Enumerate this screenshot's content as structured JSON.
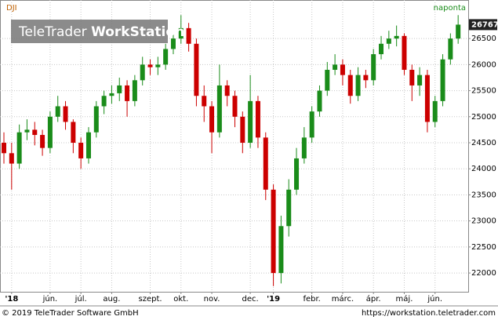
{
  "chart_data": {
    "type": "candlestick",
    "title": "DJI",
    "interval": "naponta",
    "watermark": {
      "brand": "TeleTrader",
      "product": "WorkStation"
    },
    "footer_left": "© 2019 TeleTrader Software GmbH",
    "footer_right": "https://workstation.teletrader.com",
    "up_color": "#1a8c1a",
    "down_color": "#cc0000",
    "grid": true,
    "last_value": 26767,
    "categories": [
      null,
      "'18",
      null,
      null,
      null,
      null,
      "jún.",
      null,
      null,
      null,
      "júl.",
      null,
      null,
      null,
      "aug.",
      null,
      null,
      null,
      null,
      "szept.",
      null,
      null,
      null,
      "okt.",
      null,
      null,
      null,
      "nov.",
      null,
      null,
      null,
      null,
      "dec.",
      null,
      null,
      "'19",
      null,
      null,
      null,
      null,
      "febr.",
      null,
      null,
      null,
      "márc.",
      null,
      null,
      null,
      "ápr.",
      null,
      null,
      null,
      "máj.",
      null,
      null,
      null,
      "jún.",
      null,
      null,
      null
    ],
    "open": [
      24500,
      24300,
      24100,
      24700,
      24750,
      24650,
      24400,
      25000,
      25200,
      24900,
      24500,
      24200,
      24700,
      25200,
      25400,
      25450,
      25600,
      25300,
      25700,
      26000,
      25950,
      26000,
      26300,
      26500,
      26700,
      26400,
      25400,
      25200,
      24700,
      25600,
      25400,
      25000,
      24500,
      25300,
      24600,
      23600,
      22000,
      22900,
      23600,
      24200,
      24600,
      25100,
      25500,
      25900,
      26000,
      25800,
      25400,
      25800,
      25700,
      26200,
      26400,
      26500,
      26550,
      25900,
      25600,
      25800,
      24900,
      25300,
      26100,
      26500
    ],
    "high": [
      24700,
      24500,
      24850,
      24950,
      24900,
      24750,
      25100,
      25400,
      25300,
      24950,
      24600,
      24800,
      25300,
      25500,
      25600,
      25750,
      25700,
      25800,
      26150,
      26100,
      26150,
      26400,
      26650,
      26950,
      26800,
      26500,
      25600,
      25300,
      26000,
      25700,
      25500,
      25100,
      25800,
      25400,
      24700,
      23700,
      23100,
      23800,
      24400,
      24800,
      25200,
      25600,
      26050,
      26200,
      26100,
      25900,
      25950,
      25900,
      26300,
      26550,
      26650,
      26750,
      26600,
      26000,
      25950,
      25900,
      25400,
      26200,
      26600,
      26950
    ],
    "low": [
      24100,
      23600,
      24000,
      24550,
      24450,
      24250,
      24300,
      24900,
      24750,
      24300,
      24000,
      24100,
      24600,
      25050,
      25250,
      25300,
      25000,
      25200,
      25600,
      25800,
      25800,
      25900,
      26200,
      26400,
      26250,
      25200,
      24900,
      24300,
      24600,
      25200,
      24800,
      24300,
      24400,
      24400,
      23400,
      21750,
      21800,
      22700,
      23500,
      24100,
      24500,
      25000,
      25400,
      25800,
      25600,
      25250,
      25300,
      25550,
      25600,
      26100,
      26300,
      26350,
      25800,
      25300,
      25400,
      24700,
      24800,
      25200,
      26000,
      26400
    ],
    "close": [
      24300,
      24100,
      24700,
      24750,
      24650,
      24400,
      25000,
      25200,
      24900,
      24500,
      24200,
      24700,
      25200,
      25400,
      25450,
      25600,
      25300,
      25700,
      26000,
      25950,
      26000,
      26300,
      26500,
      26700,
      26400,
      25400,
      25200,
      24700,
      25600,
      25400,
      25000,
      24500,
      25300,
      24600,
      23600,
      22000,
      22900,
      23600,
      24200,
      24600,
      25100,
      25500,
      25900,
      26000,
      25800,
      25400,
      25800,
      25700,
      26200,
      26400,
      26500,
      26550,
      25900,
      25600,
      25800,
      24900,
      25300,
      26100,
      26500,
      26767
    ],
    "ylim": [
      21640,
      27240
    ],
    "yticks": [
      22000,
      22500,
      23000,
      23500,
      24000,
      24500,
      25000,
      25500,
      26000,
      26500
    ]
  }
}
